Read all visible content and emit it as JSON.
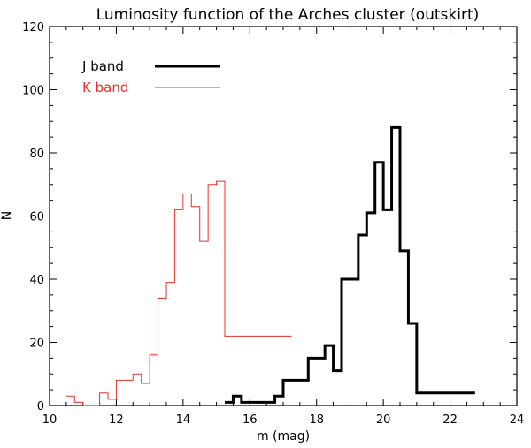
{
  "chart_data": {
    "type": "line",
    "title": "Luminosity function of the Arches cluster (outskirt)",
    "xlabel": "m (mag)",
    "ylabel": "N",
    "xlim": [
      10,
      24
    ],
    "ylim": [
      0,
      120
    ],
    "xticks": [
      10,
      12,
      14,
      16,
      18,
      20,
      22,
      24
    ],
    "yticks": [
      0,
      20,
      40,
      60,
      80,
      100,
      120
    ],
    "grid": false,
    "legend_position": "top-left",
    "bin_width": 0.25,
    "series": [
      {
        "name": "J band",
        "color": "#000000",
        "style": "step-thick",
        "bin_starts": [
          15.25,
          15.5,
          15.75,
          16.0,
          16.25,
          16.5,
          16.75,
          17.0,
          17.25,
          17.5,
          17.75,
          18.0,
          18.25,
          18.5,
          18.75,
          19.0,
          19.25,
          19.5,
          19.75,
          20.0,
          20.25,
          20.5,
          20.75,
          21.0,
          21.25,
          21.5,
          21.75,
          22.0,
          22.25,
          22.5
        ],
        "values": [
          1,
          3,
          1,
          1,
          1,
          1,
          3,
          8,
          8,
          8,
          15,
          15,
          19,
          11,
          40,
          40,
          54,
          61,
          77,
          62,
          88,
          49,
          26,
          4,
          4,
          4,
          4,
          4,
          4,
          4
        ]
      },
      {
        "name": "K band",
        "color": "#e8312a",
        "style": "step-thin",
        "bin_starts": [
          10.5,
          10.75,
          11.0,
          11.25,
          11.5,
          11.75,
          12.0,
          12.25,
          12.5,
          12.75,
          13.0,
          13.25,
          13.5,
          13.75,
          14.0,
          14.25,
          14.5,
          14.75,
          15.0,
          15.25,
          15.5,
          15.75,
          16.0,
          16.25,
          16.5,
          16.75,
          17.0
        ],
        "values": [
          3,
          1,
          0,
          0,
          4,
          2,
          8,
          8,
          10,
          7,
          16,
          34,
          39,
          62,
          67,
          63,
          52,
          70,
          71,
          22,
          22,
          22,
          22,
          22,
          22,
          22,
          22
        ]
      }
    ]
  }
}
